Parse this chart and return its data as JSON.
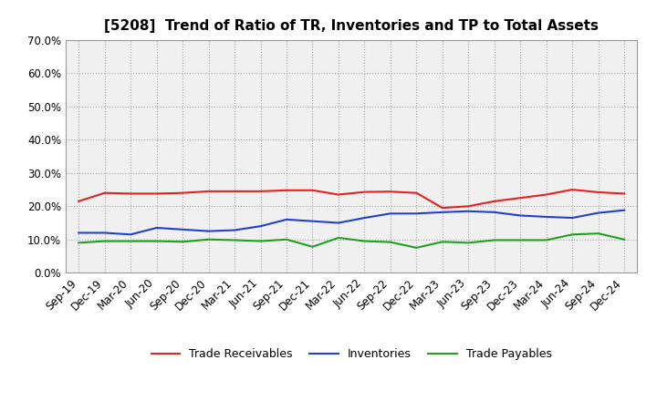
{
  "title": "[5208]  Trend of Ratio of TR, Inventories and TP to Total Assets",
  "x_labels": [
    "Sep-19",
    "Dec-19",
    "Mar-20",
    "Jun-20",
    "Sep-20",
    "Dec-20",
    "Mar-21",
    "Jun-21",
    "Sep-21",
    "Dec-21",
    "Mar-22",
    "Jun-22",
    "Sep-22",
    "Dec-22",
    "Mar-23",
    "Jun-23",
    "Sep-23",
    "Dec-23",
    "Mar-24",
    "Jun-24",
    "Sep-24",
    "Dec-24"
  ],
  "trade_receivables": [
    0.215,
    0.24,
    0.238,
    0.238,
    0.24,
    0.245,
    0.245,
    0.245,
    0.248,
    0.248,
    0.235,
    0.243,
    0.244,
    0.24,
    0.195,
    0.2,
    0.215,
    0.225,
    0.235,
    0.25,
    0.242,
    0.238
  ],
  "inventories": [
    0.12,
    0.12,
    0.115,
    0.135,
    0.13,
    0.125,
    0.128,
    0.14,
    0.16,
    0.155,
    0.15,
    0.165,
    0.178,
    0.178,
    0.182,
    0.185,
    0.182,
    0.172,
    0.168,
    0.165,
    0.18,
    0.188
  ],
  "trade_payables": [
    0.09,
    0.095,
    0.095,
    0.095,
    0.093,
    0.1,
    0.098,
    0.095,
    0.1,
    0.078,
    0.105,
    0.095,
    0.092,
    0.075,
    0.093,
    0.09,
    0.098,
    0.098,
    0.098,
    0.115,
    0.118,
    0.1
  ],
  "colors": {
    "trade_receivables": "#e82020",
    "inventories": "#2040cc",
    "trade_payables": "#20a020"
  },
  "ylim": [
    0.0,
    0.7
  ],
  "yticks": [
    0.0,
    0.1,
    0.2,
    0.3,
    0.4,
    0.5,
    0.6,
    0.7
  ],
  "background_color": "#ffffff",
  "plot_bg_color": "#f0f0f0",
  "grid_color": "#aaaaaa",
  "legend_labels": [
    "Trade Receivables",
    "Inventories",
    "Trade Payables"
  ],
  "title_fontsize": 11,
  "tick_fontsize": 8.5,
  "legend_fontsize": 9
}
